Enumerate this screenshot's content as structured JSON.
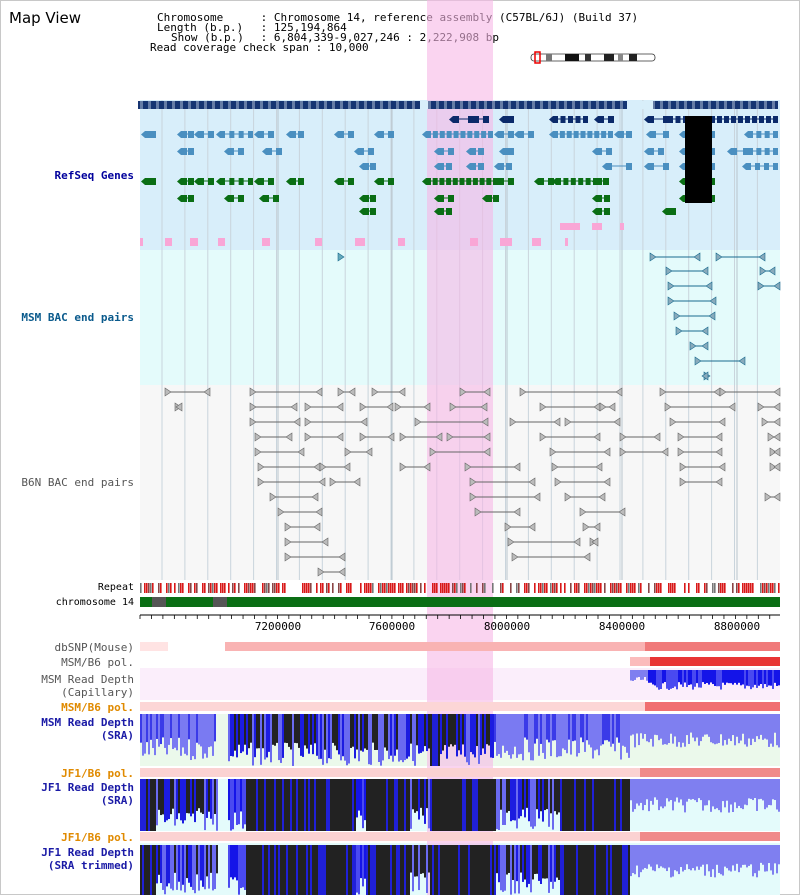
{
  "header": {
    "view_title": "Map View",
    "rows": [
      {
        "key": "Chromosome",
        "sep": ":",
        "value": "Chromosome 14, reference assembly (C57BL/6J) (Build 37)"
      },
      {
        "key": "Length (b.p.)",
        "sep": ":",
        "value": "125,194,864"
      },
      {
        "key": "Show (b.p.)",
        "sep": ":",
        "value": "6,804,339-9,027,246 : 2,222,908 bp"
      },
      {
        "key": "Read coverage check span",
        "sep": ":",
        "value": "10,000"
      }
    ]
  },
  "tracks": {
    "refseq": {
      "label": "RefSeq Genes",
      "color": "#00009c"
    },
    "msm_bac": {
      "label": "MSM BAC end pairs",
      "color": "#0a5a8c"
    },
    "b6n_bac": {
      "label": "B6N BAC end pairs",
      "color": "#555555"
    },
    "repeat": {
      "label": "Repeat"
    },
    "chromosome": {
      "label": "chromosome 14"
    },
    "dbsnp": {
      "label": "dbSNP(Mouse)"
    },
    "msm_b6_pol_1": {
      "label": "MSM/B6 pol."
    },
    "msm_depth_cap": {
      "label": "MSM Read Depth\n(Capillary)"
    },
    "msm_b6_pol_2": {
      "label": "MSM/B6 pol.",
      "color": "#e08a00"
    },
    "msm_depth_sra": {
      "label": "MSM Read Depth\n(SRA)",
      "color": "#1a1aa6"
    },
    "jf1_b6_pol_1": {
      "label": "JF1/B6 pol.",
      "color": "#e08a00"
    },
    "jf1_depth_sra": {
      "label": "JF1 Read Depth\n(SRA)",
      "color": "#1a1aa6"
    },
    "jf1_b6_pol_2": {
      "label": "JF1/B6 pol.",
      "color": "#e08a00"
    },
    "jf1_depth_trim": {
      "label": "JF1 Read Depth\n(SRA trimmed)",
      "color": "#1a1aa6"
    }
  },
  "axis": {
    "ticks": [
      "7200000",
      "7600000",
      "8000000",
      "8400000",
      "8800000"
    ]
  },
  "colors": {
    "highlight": "#f8c8ee",
    "refseq_bg": "#d8eefa",
    "msm_bg": "#e4fbfb",
    "b6n_bg": "#f6f6f6",
    "gene_dark": "#0b2a6a",
    "gene_mid": "#4a8fc0",
    "gene_green": "#0a6e14",
    "chromosome_green": "#0a6e14"
  }
}
